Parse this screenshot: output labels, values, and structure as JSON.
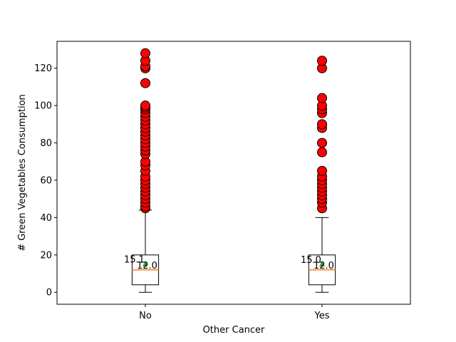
{
  "chart_data": {
    "type": "box",
    "title": "",
    "xlabel": "Other Cancer",
    "ylabel": "# Green Vegetables Consumption",
    "ylim": [
      -6.4,
      134.4
    ],
    "yticks": [
      0,
      20,
      40,
      60,
      80,
      100,
      120
    ],
    "ytick_labels": [
      "0",
      "20",
      "40",
      "60",
      "80",
      "100",
      "120"
    ],
    "grid": false,
    "categories": [
      "No",
      "Yes"
    ],
    "boxes": [
      {
        "category": "No",
        "whisker_low": 0,
        "q1": 4,
        "median": 12,
        "q3": 20,
        "whisker_high": 44,
        "mean": 15.1,
        "mean_label": "15.1",
        "median_label": "12.0",
        "outliers": [
          45,
          46,
          48,
          50,
          52,
          54,
          56,
          58,
          60,
          62,
          65,
          68,
          70,
          74,
          76,
          78,
          80,
          82,
          84,
          86,
          88,
          90,
          92,
          94,
          96,
          98,
          99,
          100,
          112,
          120,
          121,
          124,
          128
        ]
      },
      {
        "category": "Yes",
        "whisker_low": 0,
        "q1": 4,
        "median": 12,
        "q3": 20,
        "whisker_high": 40,
        "mean": 15.0,
        "mean_label": "15.0",
        "median_label": "12.0",
        "outliers": [
          45,
          48,
          50,
          52,
          54,
          56,
          58,
          60,
          62,
          65,
          75,
          80,
          88,
          90,
          96,
          98,
          100,
          104,
          120,
          124
        ]
      }
    ],
    "colors": {
      "box": "#000000",
      "median": "#ff7f0e",
      "mean_marker": "#2ca02c",
      "outlier_fill": "#ff0000",
      "outlier_edge": "#000000"
    }
  }
}
